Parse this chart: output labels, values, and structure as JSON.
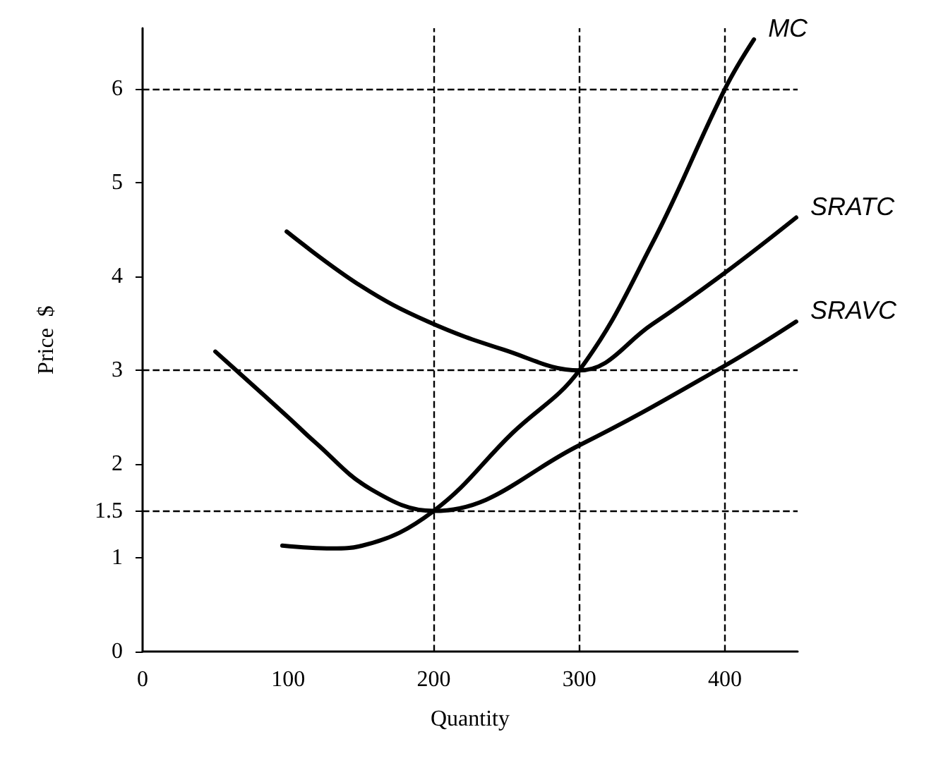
{
  "chart_data": {
    "type": "line",
    "xlabel": "Quantity",
    "ylabel": "Price  $",
    "series": [
      {
        "name": "MC",
        "color": "#000000",
        "x": [
          96,
          130,
          151,
          200,
          254,
          300,
          350,
          400,
          420
        ],
        "values": [
          1.13,
          1.1,
          1.13,
          1.5,
          2.33,
          3.0,
          4.35,
          6.0,
          6.53
        ]
      },
      {
        "name": "SRATC",
        "color": "#000000",
        "x": [
          99,
          150,
          196,
          248,
          300,
          350,
          400,
          449
        ],
        "values": [
          4.48,
          3.9,
          3.52,
          3.22,
          3.0,
          3.49,
          4.04,
          4.63
        ]
      },
      {
        "name": "SRAVC",
        "color": "#000000",
        "x": [
          50,
          100,
          118,
          157,
          200,
          300,
          400,
          449
        ],
        "values": [
          3.2,
          2.5,
          2.24,
          1.73,
          1.5,
          2.2,
          3.05,
          3.52
        ]
      }
    ],
    "xlim": [
      0,
      450
    ],
    "xticks": [
      0,
      100,
      200,
      300,
      400
    ],
    "ylim": [
      0,
      6.65
    ],
    "yticks": [
      0,
      1,
      1.5,
      2,
      3,
      4,
      5,
      6
    ],
    "ref_lines": [
      {
        "axis": "y",
        "value": 6,
        "line_style": "dashed",
        "color": "#000000"
      },
      {
        "axis": "y",
        "value": 3,
        "line_style": "dashed",
        "color": "#000000"
      },
      {
        "axis": "y",
        "value": 1.5,
        "line_style": "dashed",
        "color": "#000000"
      },
      {
        "axis": "x",
        "value": 200,
        "line_style": "dashed",
        "color": "#000000"
      },
      {
        "axis": "x",
        "value": 300,
        "line_style": "dashed",
        "color": "#000000"
      },
      {
        "axis": "x",
        "value": 400,
        "line_style": "dashed",
        "color": "#000000"
      }
    ],
    "grid": false,
    "legend": false,
    "marker": "none",
    "line_style": "solid"
  }
}
